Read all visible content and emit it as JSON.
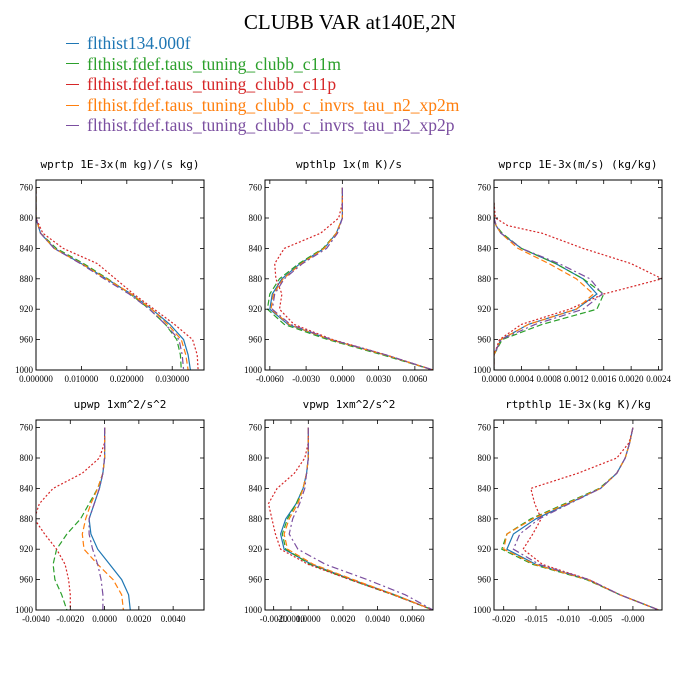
{
  "figure_title": "CLUBB VAR at140E,2N",
  "colors": {
    "flthist134.000f": "#1f77b4",
    "c11m": "#2ca02c",
    "c11p": "#d62728",
    "xp2m": "#ff7f0e",
    "xp2p": "#7b4fa0"
  },
  "legend": [
    {
      "label": "flthist134.000f",
      "color": "#1f77b4"
    },
    {
      "label": "flthist.fdef.taus_tuning_clubb_c11m",
      "color": "#2ca02c"
    },
    {
      "label": "flthist.fdef.taus_tuning_clubb_c11p",
      "color": "#d62728"
    },
    {
      "label": "flthist.fdef.taus_tuning_clubb_c_invrs_tau_n2_xp2m",
      "color": "#ff7f0e"
    },
    {
      "label": "flthist.fdef.taus_tuning_clubb_c_invrs_tau_n2_xp2p",
      "color": "#7b4fa0"
    }
  ],
  "chart_data": [
    {
      "type": "line",
      "title": "wprtp  1E-3x(m kg)/(s kg)",
      "xlim": [
        0,
        0.037
      ],
      "ylim": [
        1000,
        750
      ],
      "xticks": [
        0,
        0.01,
        0.02,
        0.03
      ],
      "xticklabels": [
        "0.000000",
        "0.010000",
        "0.020000",
        "0.030000"
      ],
      "yticks": [
        760,
        800,
        840,
        880,
        920,
        960,
        1000
      ],
      "y": [
        760,
        780,
        800,
        820,
        840,
        860,
        880,
        900,
        920,
        940,
        960,
        980,
        1000
      ],
      "series": [
        {
          "name": "flthist134.000f",
          "color": "#1f77b4",
          "dash": "solid",
          "values": [
            0,
            0,
            0,
            0.001,
            0.004,
            0.01,
            0.0155,
            0.021,
            0.0255,
            0.0295,
            0.0325,
            0.0335,
            0.034
          ]
        },
        {
          "name": "flthist.fdef.taus_tuning_clubb_c11m",
          "color": "#2ca02c",
          "dash": "dashed",
          "values": [
            0,
            0,
            0,
            0.001,
            0.0045,
            0.0105,
            0.0158,
            0.0208,
            0.025,
            0.0285,
            0.031,
            0.0318,
            0.032
          ]
        },
        {
          "name": "flthist.fdef.taus_tuning_clubb_c11p",
          "color": "#d62728",
          "dash": "dotted",
          "values": [
            0,
            0,
            0,
            0.0015,
            0.006,
            0.0135,
            0.0175,
            0.0215,
            0.026,
            0.0305,
            0.0345,
            0.0355,
            0.0357
          ]
        },
        {
          "name": "flthist.fdef.taus_tuning_clubb_c_invrs_tau_n2_xp2m",
          "color": "#ff7f0e",
          "dash": "dashed",
          "values": [
            0,
            0,
            0,
            0.001,
            0.004,
            0.01,
            0.0155,
            0.021,
            0.0255,
            0.029,
            0.032,
            0.033,
            0.0335
          ]
        },
        {
          "name": "flthist.fdef.taus_tuning_clubb_c_invrs_tau_n2_xp2p",
          "color": "#7b4fa0",
          "dash": "dashdot",
          "values": [
            0,
            0,
            0,
            0.001,
            0.004,
            0.0098,
            0.015,
            0.0205,
            0.025,
            0.0285,
            0.0315,
            0.0322,
            0.0325
          ]
        }
      ]
    },
    {
      "type": "line",
      "title": "wpthlp  1x(m K)/s",
      "xlim": [
        -0.0064,
        0.0075
      ],
      "ylim": [
        1000,
        750
      ],
      "xticks": [
        -0.006,
        -0.003,
        0,
        0.003,
        0.006
      ],
      "xticklabels": [
        "-0.0060",
        "-0.0030",
        "0.0000",
        "0.0030",
        "0.0060"
      ],
      "yticks": [
        760,
        800,
        840,
        880,
        920,
        960,
        1000
      ],
      "y": [
        760,
        780,
        800,
        820,
        840,
        860,
        880,
        900,
        920,
        940,
        960,
        980,
        1000
      ],
      "series": [
        {
          "name": "flthist134.000f",
          "color": "#1f77b4",
          "dash": "solid",
          "values": [
            0,
            0,
            0,
            -0.0005,
            -0.0015,
            -0.0035,
            -0.005,
            -0.0058,
            -0.006,
            -0.0045,
            -0.001,
            0.0035,
            0.0075
          ]
        },
        {
          "name": "flthist.fdef.taus_tuning_clubb_c11m",
          "color": "#2ca02c",
          "dash": "dashed",
          "values": [
            0,
            0,
            0,
            -0.0005,
            -0.0016,
            -0.0036,
            -0.0052,
            -0.006,
            -0.0062,
            -0.0048,
            -0.0012,
            0.0033,
            0.0075
          ]
        },
        {
          "name": "flthist.fdef.taus_tuning_clubb_c11p",
          "color": "#d62728",
          "dash": "dotted",
          "values": [
            0,
            0,
            -0.0003,
            -0.0018,
            -0.0048,
            -0.0056,
            -0.0055,
            -0.005,
            -0.0052,
            -0.004,
            -0.0008,
            0.0036,
            0.0075
          ]
        },
        {
          "name": "flthist.fdef.taus_tuning_clubb_c_invrs_tau_n2_xp2m",
          "color": "#ff7f0e",
          "dash": "dashed",
          "values": [
            0,
            0,
            0,
            -0.0005,
            -0.0015,
            -0.0034,
            -0.0049,
            -0.0057,
            -0.0059,
            -0.0044,
            -0.001,
            0.0035,
            0.0075
          ]
        },
        {
          "name": "flthist.fdef.taus_tuning_clubb_c_invrs_tau_n2_xp2p",
          "color": "#7b4fa0",
          "dash": "dashdot",
          "values": [
            0,
            0,
            0,
            -0.0004,
            -0.0013,
            -0.0033,
            -0.0048,
            -0.0056,
            -0.0058,
            -0.0043,
            -0.0009,
            0.0036,
            0.0075
          ]
        }
      ]
    },
    {
      "type": "line",
      "title": "wprcp  1E-3x(m/s) (kg/kg)",
      "xlim": [
        0,
        0.00245
      ],
      "ylim": [
        1000,
        750
      ],
      "xticks": [
        0,
        0.0004,
        0.0008,
        0.0012,
        0.0016,
        0.002,
        0.0024
      ],
      "xticklabels": [
        "0.0000",
        "0.0004",
        "0.0008",
        "0.0012",
        "0.0016",
        "0.0020",
        "0.0024"
      ],
      "yticks": [
        760,
        800,
        840,
        880,
        920,
        960,
        1000
      ],
      "y": [
        780,
        800,
        810,
        820,
        840,
        860,
        880,
        900,
        920,
        940,
        960,
        980,
        1000
      ],
      "series": [
        {
          "name": "flthist134.000f",
          "color": "#1f77b4",
          "dash": "solid",
          "values": [
            0,
            0,
            3e-05,
            0.0001,
            0.0004,
            0.0009,
            0.0013,
            0.0015,
            0.0012,
            0.0005,
            0.0001,
            0,
            0
          ]
        },
        {
          "name": "flthist.fdef.taus_tuning_clubb_c11m",
          "color": "#2ca02c",
          "dash": "dashed",
          "values": [
            0,
            0,
            3e-05,
            0.00012,
            0.0004,
            0.0009,
            0.0013,
            0.0016,
            0.0015,
            0.0007,
            0.00012,
            0,
            0
          ]
        },
        {
          "name": "flthist.fdef.taus_tuning_clubb_c11p",
          "color": "#d62728",
          "dash": "dotted",
          "values": [
            0,
            2e-05,
            0.0002,
            0.0007,
            0.0013,
            0.002,
            0.00245,
            0.0016,
            0.0011,
            0.0004,
            8e-05,
            0,
            0
          ]
        },
        {
          "name": "flthist.fdef.taus_tuning_clubb_c_invrs_tau_n2_xp2m",
          "color": "#ff7f0e",
          "dash": "dashed",
          "values": [
            0,
            0,
            3e-05,
            0.0001,
            0.00035,
            0.0008,
            0.0012,
            0.00145,
            0.0012,
            0.0005,
            0.0001,
            0,
            0
          ]
        },
        {
          "name": "flthist.fdef.taus_tuning_clubb_c_invrs_tau_n2_xp2p",
          "color": "#7b4fa0",
          "dash": "dashdot",
          "values": [
            0,
            0,
            3e-05,
            0.0001,
            0.0004,
            0.00095,
            0.0014,
            0.00158,
            0.0013,
            0.0006,
            0.0001,
            0,
            0
          ]
        }
      ]
    },
    {
      "type": "line",
      "title": "upwp  1xm^2/s^2",
      "xlim": [
        -0.004,
        0.0058
      ],
      "ylim": [
        1000,
        750
      ],
      "xticks": [
        -0.004,
        -0.002,
        0,
        0.002,
        0.004
      ],
      "xticklabels": [
        "-0.0040",
        "-0.0020",
        "0.0000",
        "0.0020",
        "0.0040"
      ],
      "yticks": [
        760,
        800,
        840,
        880,
        920,
        960,
        1000
      ],
      "y": [
        760,
        780,
        800,
        820,
        840,
        860,
        880,
        900,
        920,
        940,
        960,
        980,
        1000
      ],
      "series": [
        {
          "name": "flthist134.000f",
          "color": "#1f77b4",
          "dash": "solid",
          "values": [
            0,
            0,
            0,
            -0.0001,
            -0.0003,
            -0.0006,
            -0.0009,
            -0.0008,
            -0.0004,
            0.0003,
            0.001,
            0.0014,
            0.0015
          ]
        },
        {
          "name": "flthist.fdef.taus_tuning_clubb_c11m",
          "color": "#2ca02c",
          "dash": "dashed",
          "values": [
            0,
            0,
            0,
            -0.0001,
            -0.0004,
            -0.0009,
            -0.0014,
            -0.0022,
            -0.0028,
            -0.003,
            -0.0029,
            -0.0025,
            -0.0022
          ]
        },
        {
          "name": "flthist.fdef.taus_tuning_clubb_c11p",
          "color": "#d62728",
          "dash": "dotted",
          "values": [
            0,
            0,
            -0.0003,
            -0.0013,
            -0.003,
            -0.0038,
            -0.0041,
            -0.0035,
            -0.0028,
            -0.0023,
            -0.0021,
            -0.002,
            -0.002
          ]
        },
        {
          "name": "flthist.fdef.taus_tuning_clubb_c_invrs_tau_n2_xp2m",
          "color": "#ff7f0e",
          "dash": "dashed",
          "values": [
            0,
            0,
            0,
            -0.0001,
            -0.0004,
            -0.0008,
            -0.0011,
            -0.0013,
            -0.0012,
            -0.0004,
            0.0005,
            0.001,
            0.0011
          ]
        },
        {
          "name": "flthist.fdef.taus_tuning_clubb_c_invrs_tau_n2_xp2p",
          "color": "#7b4fa0",
          "dash": "dashdot",
          "values": [
            0,
            0,
            0,
            -0.0001,
            -0.0003,
            -0.0006,
            -0.0009,
            -0.0009,
            -0.0007,
            -0.0004,
            -0.0002,
            -0.0001,
            -0.0001
          ]
        }
      ]
    },
    {
      "type": "line",
      "title": "vpwp  1xm^2/s^2",
      "xlim": [
        -0.0025,
        0.0072
      ],
      "ylim": [
        1000,
        750
      ],
      "xticks": [
        -0.002,
        -0.001,
        0,
        0.002,
        0.004,
        0.006
      ],
      "xticklabels": [
        "-0.0020",
        "-0.0010",
        "0.0000",
        "0.0020",
        "0.0040",
        "0.0060"
      ],
      "yticks": [
        760,
        800,
        840,
        880,
        920,
        960,
        1000
      ],
      "y": [
        760,
        780,
        800,
        820,
        840,
        860,
        880,
        900,
        920,
        940,
        960,
        980,
        1000
      ],
      "series": [
        {
          "name": "flthist134.000f",
          "color": "#1f77b4",
          "dash": "solid",
          "values": [
            0,
            0,
            0,
            -0.0001,
            -0.0003,
            -0.0007,
            -0.0013,
            -0.0016,
            -0.0014,
            0.0002,
            0.0025,
            0.005,
            0.0072
          ]
        },
        {
          "name": "flthist.fdef.taus_tuning_clubb_c11m",
          "color": "#2ca02c",
          "dash": "dashed",
          "values": [
            0,
            0,
            0,
            -0.0001,
            -0.0003,
            -0.0007,
            -0.0012,
            -0.0015,
            -0.0013,
            0.0001,
            0.0024,
            0.0049,
            0.0072
          ]
        },
        {
          "name": "flthist.fdef.taus_tuning_clubb_c11p",
          "color": "#d62728",
          "dash": "dotted",
          "values": [
            0,
            0,
            -0.0002,
            -0.0008,
            -0.0018,
            -0.0023,
            -0.0021,
            -0.0019,
            -0.0016,
            0,
            0.0024,
            0.0049,
            0.0072
          ]
        },
        {
          "name": "flthist.fdef.taus_tuning_clubb_c_invrs_tau_n2_xp2m",
          "color": "#ff7f0e",
          "dash": "dashed",
          "values": [
            0,
            0,
            0,
            -0.0001,
            -0.0003,
            -0.0006,
            -0.0011,
            -0.0014,
            -0.0012,
            0.0003,
            0.0026,
            0.005,
            0.0072
          ]
        },
        {
          "name": "flthist.fdef.taus_tuning_clubb_c_invrs_tau_n2_xp2p",
          "color": "#7b4fa0",
          "dash": "dashdot",
          "values": [
            0,
            0,
            0,
            -0.0001,
            -0.0002,
            -0.0005,
            -0.0009,
            -0.0011,
            -0.0006,
            0.001,
            0.0034,
            0.0056,
            0.0072
          ]
        }
      ]
    },
    {
      "type": "line",
      "title": "rtpthlp  1E-3x(kg K)/kg",
      "xlim": [
        -0.0215,
        0.0045
      ],
      "ylim": [
        1000,
        750
      ],
      "xticks": [
        -0.02,
        -0.015,
        -0.01,
        -0.005,
        0
      ],
      "xticklabels": [
        "-0.020",
        "-0.015",
        "-0.010",
        "-0.005",
        "-0.000"
      ],
      "yticks": [
        760,
        800,
        840,
        880,
        920,
        960,
        1000
      ],
      "y": [
        760,
        780,
        800,
        820,
        840,
        860,
        880,
        900,
        920,
        940,
        960,
        980,
        1000
      ],
      "series": [
        {
          "name": "flthist134.000f",
          "color": "#1f77b4",
          "dash": "solid",
          "values": [
            0,
            -0.0005,
            -0.0012,
            -0.0025,
            -0.005,
            -0.01,
            -0.015,
            -0.0185,
            -0.0195,
            -0.015,
            -0.007,
            -0.002,
            0.004
          ]
        },
        {
          "name": "flthist.fdef.taus_tuning_clubb_c11m",
          "color": "#2ca02c",
          "dash": "dashed",
          "values": [
            0,
            -0.0005,
            -0.0012,
            -0.0025,
            -0.0052,
            -0.0105,
            -0.0158,
            -0.0195,
            -0.0203,
            -0.0155,
            -0.0072,
            -0.002,
            0.004
          ]
        },
        {
          "name": "flthist.fdef.taus_tuning_clubb_c11p",
          "color": "#d62728",
          "dash": "dotted",
          "values": [
            0,
            -0.0006,
            -0.0025,
            -0.0085,
            -0.0158,
            -0.0152,
            -0.0142,
            -0.0155,
            -0.017,
            -0.014,
            -0.0068,
            -0.002,
            0.004
          ]
        },
        {
          "name": "flthist.fdef.taus_tuning_clubb_c_invrs_tau_n2_xp2m",
          "color": "#ff7f0e",
          "dash": "dashed",
          "values": [
            0,
            -0.0005,
            -0.0012,
            -0.0025,
            -0.005,
            -0.0102,
            -0.0155,
            -0.0195,
            -0.02,
            -0.0152,
            -0.007,
            -0.002,
            0.004
          ]
        },
        {
          "name": "flthist.fdef.taus_tuning_clubb_c_invrs_tau_n2_xp2p",
          "color": "#7b4fa0",
          "dash": "dashdot",
          "values": [
            0,
            -0.0005,
            -0.0012,
            -0.0025,
            -0.005,
            -0.0098,
            -0.0145,
            -0.0175,
            -0.0185,
            -0.0145,
            -0.0068,
            -0.002,
            0.004
          ]
        }
      ]
    }
  ]
}
